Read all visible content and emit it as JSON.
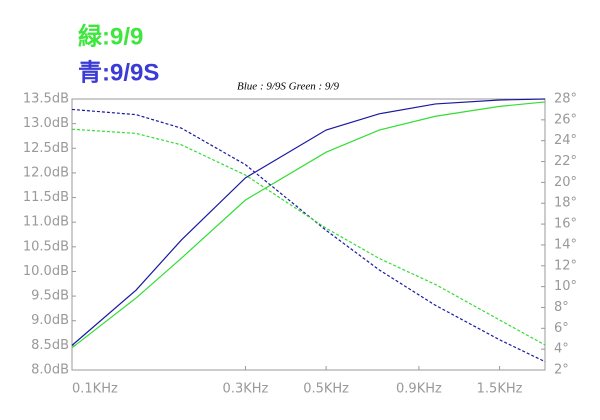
{
  "chart_data": {
    "type": "line",
    "title": "Blue : 9/9S Green : 9/9",
    "annotations": [
      {
        "text": "緑:9/9",
        "color": "#3ee63e"
      },
      {
        "text": "青:9/9S",
        "color": "#3b3bd6"
      }
    ],
    "x": [
      0.1,
      0.15,
      0.2,
      0.3,
      0.5,
      0.7,
      1,
      1.5,
      2
    ],
    "xscale": "log",
    "xlim": [
      0.1,
      2
    ],
    "xticks": [
      {
        "value": 0.1,
        "label": "0.1KHz"
      },
      {
        "value": 0.3,
        "label": "0.3KHz"
      },
      {
        "value": 0.5,
        "label": "0.5KHz"
      },
      {
        "value": 0.9,
        "label": "0.9KHz"
      },
      {
        "value": 1.5,
        "label": "1.5KHz"
      }
    ],
    "ylim": [
      8,
      13.5
    ],
    "yticks": [
      {
        "value": 8,
        "label": "8.0dB"
      },
      {
        "value": 8.5,
        "label": "8.5dB"
      },
      {
        "value": 9,
        "label": "9.0dB"
      },
      {
        "value": 9.5,
        "label": "9.5dB"
      },
      {
        "value": 10,
        "label": "10.0dB"
      },
      {
        "value": 10.5,
        "label": "10.5dB"
      },
      {
        "value": 11,
        "label": "11.0dB"
      },
      {
        "value": 11.5,
        "label": "11.5dB"
      },
      {
        "value": 12,
        "label": "12.0dB"
      },
      {
        "value": 12.5,
        "label": "12.5dB"
      },
      {
        "value": 13,
        "label": "13.0dB"
      },
      {
        "value": 13.5,
        "label": "13.5dB"
      }
    ],
    "y2lim": [
      2,
      28
    ],
    "y2ticks": [
      {
        "value": 2,
        "label": "2°"
      },
      {
        "value": 4,
        "label": "4°"
      },
      {
        "value": 6,
        "label": "6°"
      },
      {
        "value": 8,
        "label": "8°"
      },
      {
        "value": 10,
        "label": "10°"
      },
      {
        "value": 12,
        "label": "12°"
      },
      {
        "value": 14,
        "label": "14°"
      },
      {
        "value": 16,
        "label": "16°"
      },
      {
        "value": 18,
        "label": "18°"
      },
      {
        "value": 20,
        "label": "20°"
      },
      {
        "value": 22,
        "label": "22°"
      },
      {
        "value": 24,
        "label": "24°"
      },
      {
        "value": 26,
        "label": "26°"
      },
      {
        "value": 28,
        "label": "28°"
      }
    ],
    "grid": false,
    "series": [
      {
        "color": "#1a1aa0",
        "dashed": false,
        "values": [
          8.5,
          9.62,
          10.64,
          11.9,
          12.87,
          13.2,
          13.4,
          13.48,
          13.5
        ]
      },
      {
        "color": "#33dd33",
        "dashed": false,
        "values": [
          8.45,
          9.46,
          10.27,
          11.45,
          12.42,
          12.87,
          13.15,
          13.35,
          13.44
        ]
      },
      {
        "color": "#1a1aa0",
        "dashed": true,
        "axis": "y2",
        "values": [
          27,
          26.5,
          25.2,
          21.7,
          15.4,
          11.6,
          8.2,
          4.9,
          2.8
        ]
      },
      {
        "color": "#33dd33",
        "dashed": true,
        "axis": "y2",
        "values": [
          25.1,
          24.7,
          23.6,
          20.7,
          15.6,
          12.7,
          10.2,
          6.8,
          4.4
        ]
      }
    ]
  }
}
